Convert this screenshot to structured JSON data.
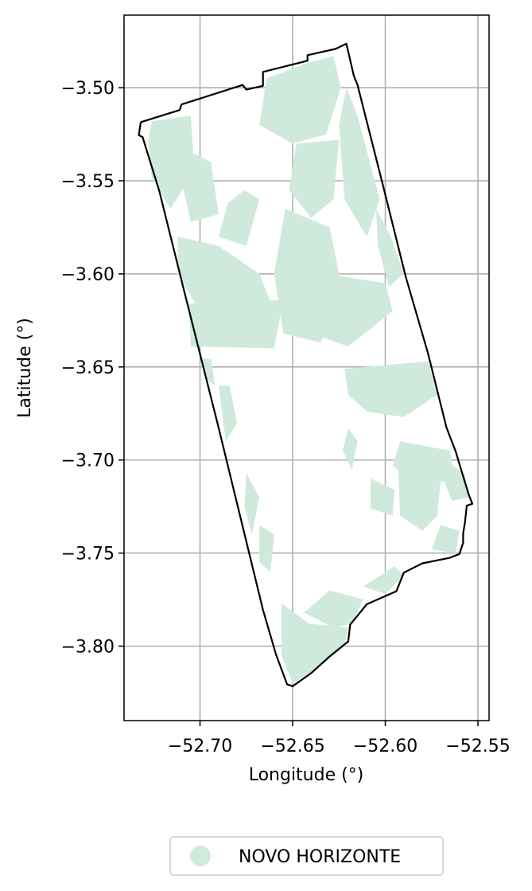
{
  "chart_data": {
    "type": "map",
    "xlabel": "Longitude (°)",
    "ylabel": "Latitude (°)",
    "xlim": [
      -52.741,
      -52.544
    ],
    "ylim": [
      -3.84,
      -3.461
    ],
    "xticks": [
      -52.7,
      -52.65,
      -52.6,
      -52.55
    ],
    "xtick_labels": [
      "−52.70",
      "−52.65",
      "−52.60",
      "−52.55"
    ],
    "yticks": [
      -3.5,
      -3.55,
      -3.6,
      -3.65,
      -3.7,
      -3.75,
      -3.8
    ],
    "ytick_labels": [
      "−3.50",
      "−3.55",
      "−3.60",
      "−3.65",
      "−3.70",
      "−3.75",
      "−3.80"
    ],
    "grid": true,
    "legend_position": "bottom-center",
    "series": [
      {
        "name": "NOVO HORIZONTE",
        "color": "#cfeadc"
      }
    ],
    "boundary": [
      [
        -52.732,
        -3.5185
      ],
      [
        -52.711,
        -3.512
      ],
      [
        -52.71,
        -3.509
      ],
      [
        -52.677,
        -3.4985
      ],
      [
        -52.675,
        -3.501
      ],
      [
        -52.666,
        -3.499
      ],
      [
        -52.666,
        -3.4915
      ],
      [
        -52.642,
        -3.4855
      ],
      [
        -52.642,
        -3.4825
      ],
      [
        -52.627,
        -3.4792
      ],
      [
        -52.621,
        -3.4764
      ],
      [
        -52.617,
        -3.4935
      ],
      [
        -52.615,
        -3.4985
      ],
      [
        -52.601,
        -3.5535
      ],
      [
        -52.589,
        -3.6015
      ],
      [
        -52.577,
        -3.6425
      ],
      [
        -52.567,
        -3.6825
      ],
      [
        -52.562,
        -3.6955
      ],
      [
        -52.559,
        -3.7055
      ],
      [
        -52.555,
        -3.7185
      ],
      [
        -52.553,
        -3.7235
      ],
      [
        -52.556,
        -3.7245
      ],
      [
        -52.557,
        -3.7335
      ],
      [
        -52.558,
        -3.7395
      ],
      [
        -52.558,
        -3.7445
      ],
      [
        -52.56,
        -3.7505
      ],
      [
        -52.565,
        -3.7525
      ],
      [
        -52.58,
        -3.7555
      ],
      [
        -52.59,
        -3.7605
      ],
      [
        -52.594,
        -3.7705
      ],
      [
        -52.61,
        -3.7775
      ],
      [
        -52.619,
        -3.7885
      ],
      [
        -52.62,
        -3.7975
      ],
      [
        -52.63,
        -3.8055
      ],
      [
        -52.64,
        -3.8145
      ],
      [
        -52.65,
        -3.8215
      ],
      [
        -52.653,
        -3.8205
      ],
      [
        -52.659,
        -3.8045
      ],
      [
        -52.666,
        -3.7805
      ],
      [
        -52.69,
        -3.6825
      ],
      [
        -52.709,
        -3.6075
      ],
      [
        -52.722,
        -3.5555
      ],
      [
        -52.731,
        -3.5265
      ],
      [
        -52.733,
        -3.5255
      ],
      [
        -52.732,
        -3.5185
      ]
    ],
    "area_patches": [
      [
        [
          -52.726,
          -3.518
        ],
        [
          -52.705,
          -3.515
        ],
        [
          -52.703,
          -3.545
        ],
        [
          -52.716,
          -3.565
        ],
        [
          -52.726,
          -3.548
        ],
        [
          -52.728,
          -3.528
        ]
      ],
      [
        [
          -52.704,
          -3.535
        ],
        [
          -52.694,
          -3.54
        ],
        [
          -52.69,
          -3.568
        ],
        [
          -52.705,
          -3.572
        ],
        [
          -52.71,
          -3.55
        ]
      ],
      [
        [
          -52.676,
          -3.555
        ],
        [
          -52.668,
          -3.56
        ],
        [
          -52.675,
          -3.585
        ],
        [
          -52.69,
          -3.58
        ],
        [
          -52.685,
          -3.562
        ]
      ],
      [
        [
          -52.664,
          -3.495
        ],
        [
          -52.643,
          -3.487
        ],
        [
          -52.628,
          -3.483
        ],
        [
          -52.624,
          -3.5
        ],
        [
          -52.632,
          -3.525
        ],
        [
          -52.65,
          -3.53
        ],
        [
          -52.668,
          -3.52
        ]
      ],
      [
        [
          -52.648,
          -3.53
        ],
        [
          -52.625,
          -3.528
        ],
        [
          -52.628,
          -3.56
        ],
        [
          -52.64,
          -3.57
        ],
        [
          -52.652,
          -3.555
        ]
      ],
      [
        [
          -52.712,
          -3.58
        ],
        [
          -52.69,
          -3.585
        ],
        [
          -52.668,
          -3.6
        ],
        [
          -52.66,
          -3.62
        ],
        [
          -52.69,
          -3.625
        ],
        [
          -52.702,
          -3.617
        ],
        [
          -52.712,
          -3.6
        ]
      ],
      [
        [
          -52.706,
          -3.616
        ],
        [
          -52.655,
          -3.614
        ],
        [
          -52.66,
          -3.64
        ],
        [
          -52.705,
          -3.639
        ]
      ],
      [
        [
          -52.654,
          -3.565
        ],
        [
          -52.63,
          -3.575
        ],
        [
          -52.623,
          -3.61
        ],
        [
          -52.635,
          -3.637
        ],
        [
          -52.655,
          -3.632
        ],
        [
          -52.66,
          -3.6
        ]
      ],
      [
        [
          -52.632,
          -3.6
        ],
        [
          -52.6,
          -3.605
        ],
        [
          -52.596,
          -3.62
        ],
        [
          -52.62,
          -3.639
        ],
        [
          -52.64,
          -3.632
        ]
      ],
      [
        [
          -52.621,
          -3.5
        ],
        [
          -52.615,
          -3.515
        ],
        [
          -52.603,
          -3.56
        ],
        [
          -52.61,
          -3.58
        ],
        [
          -52.622,
          -3.56
        ],
        [
          -52.625,
          -3.52
        ]
      ],
      [
        [
          -52.605,
          -3.565
        ],
        [
          -52.597,
          -3.58
        ],
        [
          -52.59,
          -3.6
        ],
        [
          -52.598,
          -3.607
        ],
        [
          -52.604,
          -3.585
        ]
      ],
      [
        [
          -52.622,
          -3.651
        ],
        [
          -52.577,
          -3.647
        ],
        [
          -52.572,
          -3.665
        ],
        [
          -52.59,
          -3.677
        ],
        [
          -52.61,
          -3.674
        ],
        [
          -52.62,
          -3.665
        ]
      ],
      [
        [
          -52.592,
          -3.69
        ],
        [
          -52.565,
          -3.695
        ],
        [
          -52.563,
          -3.71
        ],
        [
          -52.58,
          -3.715
        ],
        [
          -52.596,
          -3.703
        ]
      ],
      [
        [
          -52.593,
          -3.705
        ],
        [
          -52.57,
          -3.71
        ],
        [
          -52.572,
          -3.73
        ],
        [
          -52.58,
          -3.738
        ],
        [
          -52.592,
          -3.73
        ]
      ],
      [
        [
          -52.567,
          -3.7
        ],
        [
          -52.557,
          -3.708
        ],
        [
          -52.555,
          -3.72
        ],
        [
          -52.564,
          -3.722
        ],
        [
          -52.568,
          -3.712
        ]
      ],
      [
        [
          -52.57,
          -3.735
        ],
        [
          -52.56,
          -3.738
        ],
        [
          -52.562,
          -3.75
        ],
        [
          -52.575,
          -3.748
        ]
      ],
      [
        [
          -52.608,
          -3.71
        ],
        [
          -52.595,
          -3.716
        ],
        [
          -52.596,
          -3.73
        ],
        [
          -52.608,
          -3.726
        ]
      ],
      [
        [
          -52.656,
          -3.777
        ],
        [
          -52.641,
          -3.788
        ],
        [
          -52.62,
          -3.79
        ],
        [
          -52.622,
          -3.8
        ],
        [
          -52.63,
          -3.807
        ],
        [
          -52.64,
          -3.814
        ],
        [
          -52.65,
          -3.82
        ],
        [
          -52.656,
          -3.805
        ]
      ],
      [
        [
          -52.644,
          -3.782
        ],
        [
          -52.63,
          -3.77
        ],
        [
          -52.612,
          -3.775
        ],
        [
          -52.618,
          -3.788
        ],
        [
          -52.628,
          -3.79
        ]
      ],
      [
        [
          -52.612,
          -3.768
        ],
        [
          -52.595,
          -3.757
        ],
        [
          -52.59,
          -3.762
        ],
        [
          -52.6,
          -3.772
        ]
      ],
      [
        [
          -52.668,
          -3.735
        ],
        [
          -52.66,
          -3.74
        ],
        [
          -52.662,
          -3.76
        ],
        [
          -52.668,
          -3.755
        ]
      ],
      [
        [
          -52.69,
          -3.66
        ],
        [
          -52.684,
          -3.66
        ],
        [
          -52.68,
          -3.68
        ],
        [
          -52.686,
          -3.69
        ]
      ],
      [
        [
          -52.675,
          -3.707
        ],
        [
          -52.668,
          -3.72
        ],
        [
          -52.672,
          -3.74
        ],
        [
          -52.676,
          -3.725
        ]
      ],
      [
        [
          -52.62,
          -3.683
        ],
        [
          -52.615,
          -3.69
        ],
        [
          -52.618,
          -3.705
        ],
        [
          -52.623,
          -3.695
        ]
      ],
      [
        [
          -52.7,
          -3.645
        ],
        [
          -52.694,
          -3.646
        ],
        [
          -52.692,
          -3.66
        ],
        [
          -52.697,
          -3.656
        ]
      ]
    ],
    "legend": {
      "label": "NOVO HORIZONTE"
    }
  }
}
